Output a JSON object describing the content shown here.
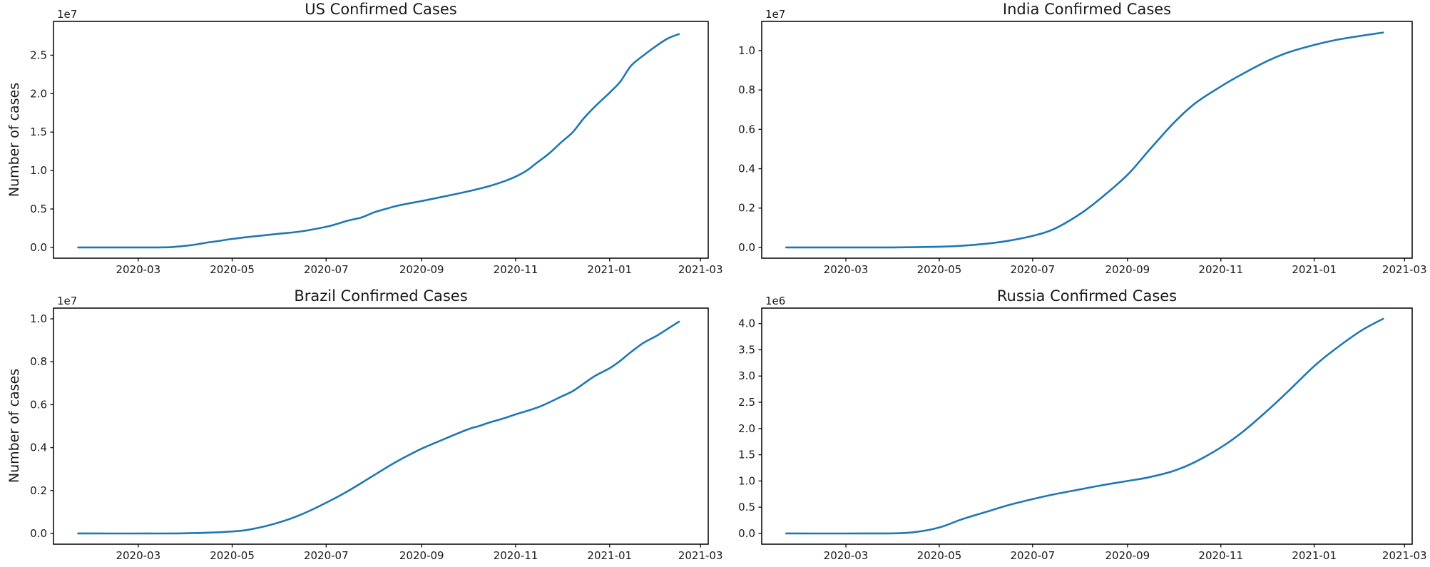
{
  "figure": {
    "background_color": "#ffffff",
    "text_color": "#1a1a1a",
    "spine_color": "#000000",
    "line_color": "#1f77b4",
    "grid": false,
    "legend": false
  },
  "chart_data": [
    {
      "type": "line",
      "title": "US Confirmed Cases",
      "ylabel": "Number of cases",
      "xlabel": "",
      "y_offset_text": "1e7",
      "x_unit": "days since 2020-03-01",
      "xlim": [
        -55,
        370
      ],
      "ylim": [
        -1400000,
        29400000
      ],
      "xticks": {
        "days": [
          0,
          61,
          122,
          184,
          245,
          306,
          365
        ],
        "labels": [
          "2020-03",
          "2020-05",
          "2020-07",
          "2020-09",
          "2020-11",
          "2021-01",
          "2021-03"
        ]
      },
      "yticks": {
        "values": [
          0,
          5000000,
          10000000,
          15000000,
          20000000,
          25000000
        ],
        "labels": [
          "0.0",
          "0.5",
          "1.0",
          "1.5",
          "2.0",
          "2.5"
        ]
      },
      "series": {
        "name": "US",
        "x_days": [
          -39,
          -29,
          -15,
          0,
          7,
          14,
          21,
          31,
          38,
          45,
          52,
          61,
          75,
          92,
          106,
          122,
          129,
          136,
          145,
          153,
          160,
          167,
          175,
          184,
          198,
          214,
          228,
          238,
          245,
          252,
          259,
          267,
          275,
          282,
          289,
          296,
          306,
          313,
          320,
          329,
          337,
          344,
          351
        ],
        "y": [
          1,
          8,
          15,
          75,
          541,
          3500,
          33000,
          213000,
          400000,
          640000,
          830000,
          1103000,
          1440000,
          1790000,
          2090000,
          2680000,
          3050000,
          3480000,
          3900000,
          4560000,
          4970000,
          5360000,
          5700000,
          6030000,
          6610000,
          7280000,
          7980000,
          8640000,
          9210000,
          9970000,
          11040000,
          12270000,
          13750000,
          14970000,
          16740000,
          18230000,
          20130000,
          21580000,
          23650000,
          25130000,
          26310000,
          27200000,
          27750000
        ]
      }
    },
    {
      "type": "line",
      "title": "India Confirmed Cases",
      "ylabel": "",
      "xlabel": "",
      "y_offset_text": "1e7",
      "x_unit": "days since 2020-03-01",
      "xlim": [
        -55,
        370
      ],
      "ylim": [
        -547000,
        11487000
      ],
      "xticks": {
        "days": [
          0,
          61,
          122,
          184,
          245,
          306,
          365
        ],
        "labels": [
          "2020-03",
          "2020-05",
          "2020-07",
          "2020-09",
          "2020-11",
          "2021-01",
          "2021-03"
        ]
      },
      "yticks": {
        "values": [
          0,
          2000000,
          4000000,
          6000000,
          8000000,
          10000000
        ],
        "labels": [
          "0.0",
          "0.2",
          "0.4",
          "0.6",
          "0.8",
          "1.0"
        ]
      },
      "series": {
        "name": "India",
        "x_days": [
          -39,
          0,
          31,
          61,
          75,
          92,
          106,
          122,
          136,
          153,
          167,
          184,
          198,
          214,
          228,
          245,
          259,
          275,
          289,
          306,
          320,
          337,
          351
        ],
        "y": [
          0,
          3,
          1400,
          35000,
          81000,
          190000,
          333000,
          585000,
          937000,
          1700000,
          2530000,
          3690000,
          4930000,
          6310000,
          7310000,
          8180000,
          8810000,
          9460000,
          9910000,
          10290000,
          10540000,
          10760000,
          10920000
        ]
      }
    },
    {
      "type": "line",
      "title": "Brazil Confirmed Cases",
      "ylabel": "Number of cases",
      "xlabel": "",
      "y_offset_text": "1e7",
      "x_unit": "days since 2020-03-01",
      "xlim": [
        -55,
        370
      ],
      "ylim": [
        -500000,
        10500000
      ],
      "xticks": {
        "days": [
          0,
          61,
          122,
          184,
          245,
          306,
          365
        ],
        "labels": [
          "2020-03",
          "2020-05",
          "2020-07",
          "2020-09",
          "2020-11",
          "2021-01",
          "2021-03"
        ]
      },
      "yticks": {
        "values": [
          0,
          2000000,
          4000000,
          6000000,
          8000000,
          10000000
        ],
        "labels": [
          "0.0",
          "0.2",
          "0.4",
          "0.6",
          "0.8",
          "1.0"
        ]
      },
      "series": {
        "name": "Brazil",
        "x_days": [
          -39,
          0,
          31,
          61,
          75,
          92,
          106,
          122,
          136,
          153,
          167,
          184,
          198,
          214,
          221,
          228,
          238,
          245,
          252,
          262,
          275,
          282,
          289,
          296,
          306,
          313,
          320,
          328,
          337,
          344,
          351
        ],
        "y": [
          0,
          2,
          6800,
          92000,
          220000,
          526000,
          888000,
          1430000,
          1970000,
          2710000,
          3320000,
          3950000,
          4380000,
          4850000,
          5000000,
          5170000,
          5380000,
          5550000,
          5700000,
          5950000,
          6390000,
          6630000,
          6970000,
          7320000,
          7700000,
          8050000,
          8460000,
          8880000,
          9230000,
          9550000,
          9870000
        ]
      }
    },
    {
      "type": "line",
      "title": "Russia Confirmed Cases",
      "ylabel": "",
      "xlabel": "",
      "y_offset_text": "1e6",
      "x_unit": "days since 2020-03-01",
      "xlim": [
        -55,
        370
      ],
      "ylim": [
        -204500,
        4294500
      ],
      "xticks": {
        "days": [
          0,
          61,
          122,
          184,
          245,
          306,
          365
        ],
        "labels": [
          "2020-03",
          "2020-05",
          "2020-07",
          "2020-09",
          "2020-11",
          "2021-01",
          "2021-03"
        ]
      },
      "yticks": {
        "values": [
          0,
          500000,
          1000000,
          1500000,
          2000000,
          2500000,
          3000000,
          3500000,
          4000000
        ],
        "labels": [
          "0.0",
          "0.5",
          "1.0",
          "1.5",
          "2.0",
          "2.5",
          "3.0",
          "3.5",
          "4.0"
        ]
      },
      "series": {
        "name": "Russia",
        "x_days": [
          -39,
          0,
          31,
          45,
          61,
          75,
          92,
          106,
          122,
          136,
          153,
          167,
          184,
          198,
          214,
          228,
          245,
          259,
          275,
          289,
          306,
          320,
          337,
          351
        ],
        "y": [
          0,
          2,
          2700,
          25000,
          114000,
          262000,
          414000,
          537000,
          654000,
          746000,
          839000,
          917000,
          1000000,
          1070000,
          1190000,
          1360000,
          1640000,
          1930000,
          2330000,
          2710000,
          3190000,
          3520000,
          3870000,
          4090000
        ]
      }
    }
  ]
}
